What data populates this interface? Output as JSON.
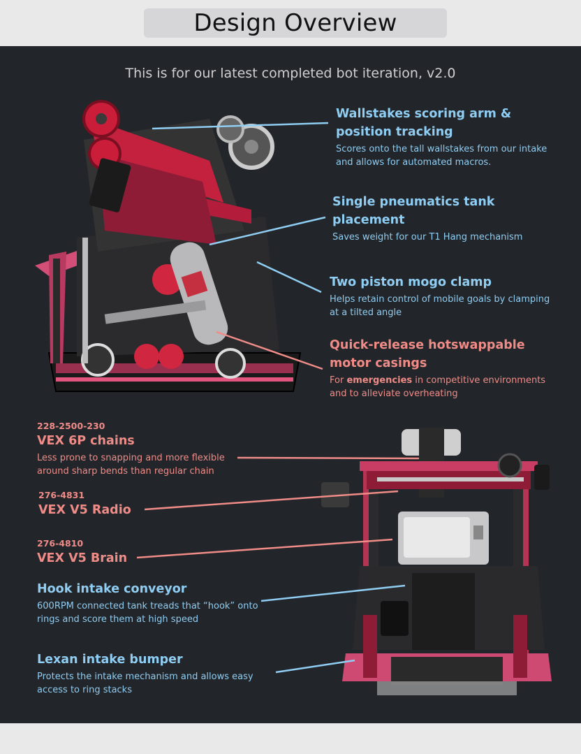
{
  "header": {
    "title": "Design Overview"
  },
  "subtitle": "This is for our latest completed bot iteration, v2.0",
  "colors": {
    "blue": "#8fcdf2",
    "red": "#f08c88",
    "panel": "#222529",
    "band": "#e9e9ea"
  },
  "annotations_top": [
    {
      "title": "Wallstakes scoring arm & position tracking",
      "desc": "Scores onto the tall wallstakes from our intake and allows for automated macros."
    },
    {
      "title": "Single pneumatics tank placement",
      "desc": "Saves weight for our T1 Hang mechanism"
    },
    {
      "title": "Two piston mogo clamp",
      "desc": "Helps retain control of mobile goals by clamping at a tilted angle"
    },
    {
      "title": "Quick-release hotswappable motor casings",
      "desc_prefix": "For ",
      "desc_bold": "emergencies",
      "desc_suffix": " in competitive environments and to alleviate overheating"
    }
  ],
  "annotations_bottom": [
    {
      "code": "228-2500-230",
      "title": "VEX 6P chains",
      "desc": "Less prone to snapping and more flexible around sharp bends than regular chain"
    },
    {
      "code": "276-4831",
      "title": "VEX V5 Radio"
    },
    {
      "code": "276-4810",
      "title": "VEX V5 Brain"
    },
    {
      "title": "Hook intake conveyor",
      "desc": "600RPM connected tank treads that “hook” onto rings and score them at high speed"
    },
    {
      "title": "Lexan intake bumper",
      "desc": "Protects the intake mechanism and allows easy access to ring stacks"
    }
  ]
}
